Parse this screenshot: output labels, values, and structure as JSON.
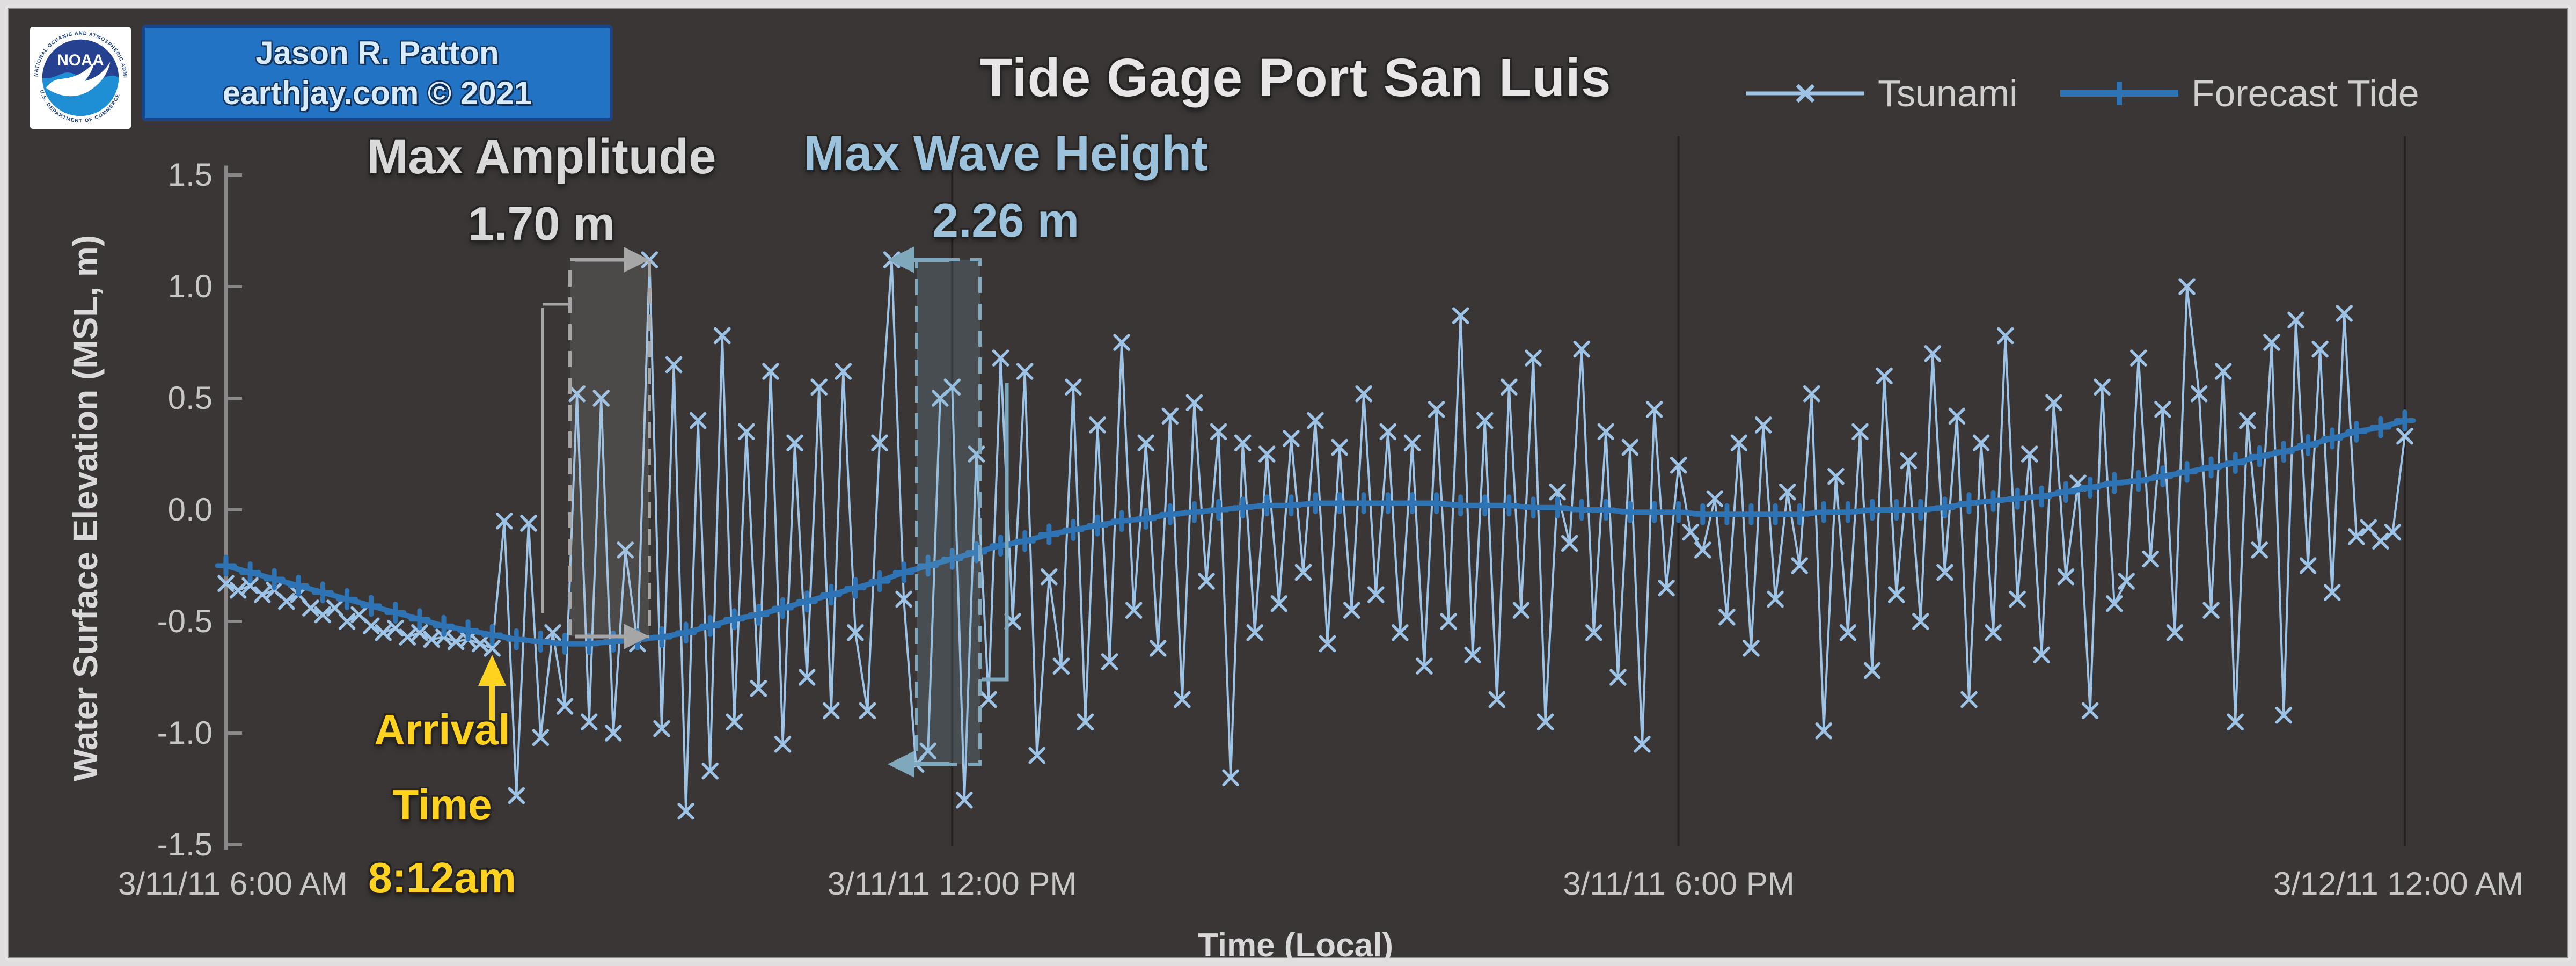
{
  "header": {
    "title": "Tide Gage Port San Luis"
  },
  "branding": {
    "noaa_label": "NOAA",
    "noaa_ring_top": "NATIONAL OCEANIC AND ATMOSPHERIC ADMINISTRATION",
    "noaa_ring_bottom": "U.S. DEPARTMENT OF COMMERCE",
    "credit_line1": "Jason R. Patton",
    "credit_line2": "earthjay.com © 2021"
  },
  "axes": {
    "y_label": "Water Surface Elevation (MSL, m)",
    "x_label": "Time (Local)",
    "y_ticks": [
      "1.5",
      "1.0",
      "0.5",
      "0.0",
      "-0.5",
      "-1.0",
      "-1.5"
    ],
    "x_ticks": [
      "3/11/11 6:00 AM",
      "3/11/11 12:00 PM",
      "3/11/11 6:00 PM",
      "3/12/11 12:00 AM"
    ]
  },
  "annotations": {
    "max_amplitude": {
      "label": "Max Amplitude",
      "value": "1.70 m"
    },
    "max_wave_height": {
      "label": "Max Wave Height",
      "value": "2.26 m"
    },
    "arrival": {
      "line1": "Arrival",
      "line2": "Time",
      "line3": "8:12am"
    }
  },
  "colors": {
    "background": "#3a3636",
    "frame": "#e0dede",
    "tsunami": "#9dc3e6",
    "forecast": "#2e74b5",
    "title": "#e8e6e6",
    "tick_label": "#c9c6c6",
    "legend_label": "#d0cece",
    "axis": "#8a8888",
    "gridline": "#242021",
    "max_amp": "#d9d9d9",
    "max_amp_shape": "#a6a6a6",
    "mwh": "#9dc3dc",
    "mwh_shape": "#7fa8bd",
    "arrival": "#ffd21f",
    "credit_bg": "#2273c4",
    "credit_border": "#1c4587",
    "credit_text": "#d9ecfb",
    "noaa_navy": "#25418f",
    "noaa_blue": "#1e8fd5"
  },
  "chart_data": {
    "type": "line",
    "title": "Tide Gage Port San Luis",
    "xlabel": "Time (Local)",
    "ylabel": "Water Surface Elevation (MSL, m)",
    "ylim": [
      -1.5,
      1.5
    ],
    "grid": "vertical-only",
    "legend_position": "top-right",
    "x_start": "3/11/11 6:00 AM",
    "x_end": "3/12/11 12:00 AM",
    "x_tick_minutes": [
      0,
      360,
      720,
      1080
    ],
    "gridline_minutes": [
      360,
      720,
      1080
    ],
    "y_tick_values": [
      1.5,
      1.0,
      0.5,
      0.0,
      -0.5,
      -1.0,
      -1.5
    ],
    "event": {
      "arrival_minute": 132,
      "arrival_time": "8:12am",
      "max_amplitude_m": 1.7,
      "max_wave_height_m": 2.26
    },
    "series": [
      {
        "name": "Tsunami",
        "marker": "x",
        "step_minutes": 6,
        "values": [
          -0.33,
          -0.36,
          -0.34,
          -0.38,
          -0.36,
          -0.41,
          -0.38,
          -0.44,
          -0.47,
          -0.44,
          -0.5,
          -0.47,
          -0.52,
          -0.55,
          -0.53,
          -0.57,
          -0.55,
          -0.58,
          -0.57,
          -0.59,
          -0.58,
          -0.6,
          -0.62,
          -0.05,
          -1.28,
          -0.06,
          -1.02,
          -0.55,
          -0.88,
          0.52,
          -0.95,
          0.5,
          -1.0,
          -0.18,
          -0.6,
          1.12,
          -0.98,
          0.65,
          -1.35,
          0.4,
          -1.17,
          0.78,
          -0.95,
          0.35,
          -0.8,
          0.62,
          -1.05,
          0.3,
          -0.75,
          0.55,
          -0.9,
          0.62,
          -0.55,
          -0.9,
          0.3,
          1.12,
          -0.4,
          -1.14,
          -1.08,
          0.5,
          0.55,
          -1.3,
          0.25,
          -0.85,
          0.68,
          -0.5,
          0.62,
          -1.1,
          -0.3,
          -0.7,
          0.55,
          -0.95,
          0.38,
          -0.68,
          0.75,
          -0.45,
          0.3,
          -0.62,
          0.42,
          -0.85,
          0.48,
          -0.32,
          0.35,
          -1.2,
          0.3,
          -0.55,
          0.25,
          -0.42,
          0.32,
          -0.28,
          0.4,
          -0.6,
          0.28,
          -0.45,
          0.52,
          -0.38,
          0.35,
          -0.55,
          0.3,
          -0.7,
          0.45,
          -0.5,
          0.87,
          -0.65,
          0.4,
          -0.85,
          0.55,
          -0.45,
          0.68,
          -0.95,
          0.08,
          -0.15,
          0.72,
          -0.55,
          0.35,
          -0.75,
          0.28,
          -1.05,
          0.45,
          -0.35,
          0.2,
          -0.1,
          -0.18,
          0.05,
          -0.48,
          0.3,
          -0.62,
          0.38,
          -0.4,
          0.08,
          -0.25,
          0.52,
          -0.99,
          0.15,
          -0.55,
          0.35,
          -0.72,
          0.6,
          -0.38,
          0.22,
          -0.5,
          0.7,
          -0.28,
          0.42,
          -0.85,
          0.3,
          -0.55,
          0.78,
          -0.4,
          0.25,
          -0.65,
          0.48,
          -0.3,
          0.12,
          -0.9,
          0.55,
          -0.42,
          -0.32,
          0.68,
          -0.22,
          0.45,
          -0.55,
          1.0,
          0.52,
          -0.45,
          0.62,
          -0.95,
          0.4,
          -0.18,
          0.75,
          -0.92,
          0.85,
          -0.25,
          0.72,
          -0.37,
          0.88,
          -0.12,
          -0.08,
          -0.14,
          -0.1,
          0.33
        ]
      },
      {
        "name": "Forecast Tide",
        "marker": "plus",
        "step_minutes": 12,
        "values": [
          -0.25,
          -0.28,
          -0.31,
          -0.34,
          -0.37,
          -0.4,
          -0.43,
          -0.46,
          -0.49,
          -0.52,
          -0.54,
          -0.56,
          -0.58,
          -0.59,
          -0.6,
          -0.6,
          -0.59,
          -0.58,
          -0.57,
          -0.55,
          -0.52,
          -0.49,
          -0.47,
          -0.44,
          -0.41,
          -0.38,
          -0.35,
          -0.32,
          -0.28,
          -0.25,
          -0.22,
          -0.19,
          -0.16,
          -0.14,
          -0.11,
          -0.09,
          -0.07,
          -0.05,
          -0.04,
          -0.02,
          -0.01,
          0.0,
          0.01,
          0.02,
          0.02,
          0.03,
          0.03,
          0.03,
          0.03,
          0.03,
          0.03,
          0.02,
          0.02,
          0.02,
          0.01,
          0.01,
          0.0,
          0.0,
          -0.01,
          -0.01,
          -0.01,
          -0.02,
          -0.02,
          -0.02,
          -0.02,
          -0.02,
          -0.01,
          -0.01,
          0.0,
          0.0,
          0.0,
          0.01,
          0.03,
          0.04,
          0.05,
          0.06,
          0.08,
          0.1,
          0.12,
          0.13,
          0.15,
          0.17,
          0.19,
          0.21,
          0.24,
          0.26,
          0.29,
          0.32,
          0.35,
          0.37,
          0.4
        ]
      }
    ]
  }
}
